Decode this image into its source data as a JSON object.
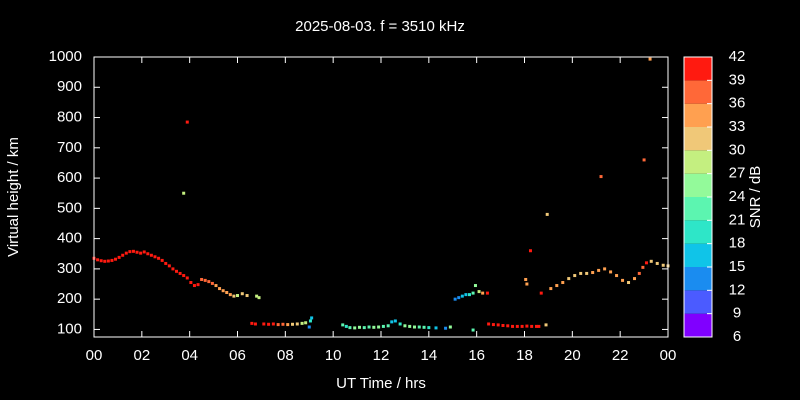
{
  "chart_data": {
    "type": "scatter",
    "title": "2025-08-03. f = 3510 kHz",
    "x_label": "UT Time / hrs",
    "y_label": "Virtual height / km",
    "colorbar_label": "SNR / dB",
    "xlim": [
      0,
      24
    ],
    "ylim": [
      75,
      1000
    ],
    "xticks": [
      {
        "value": 0,
        "label": "00"
      },
      {
        "value": 2,
        "label": "02"
      },
      {
        "value": 4,
        "label": "04"
      },
      {
        "value": 6,
        "label": "06"
      },
      {
        "value": 8,
        "label": "08"
      },
      10,
      12,
      14,
      16,
      18,
      20,
      22,
      {
        "value": 24,
        "label": "00"
      }
    ],
    "yticks": [
      100,
      200,
      300,
      400,
      500,
      600,
      700,
      800,
      900,
      1000
    ],
    "colorbar": {
      "lim": [
        6,
        42
      ],
      "ticks": [
        6,
        9,
        12,
        15,
        18,
        21,
        24,
        27,
        30,
        33,
        36,
        39,
        42
      ],
      "colors": [
        "#8000ff",
        "#4b5bff",
        "#1a8cf0",
        "#10c4e8",
        "#2ee6c8",
        "#5cf5b0",
        "#93fa9a",
        "#c4ef80",
        "#f0c878",
        "#ffa050",
        "#ff6838",
        "#ff1a10"
      ]
    },
    "x": [
      0.0,
      0.15,
      0.3,
      0.45,
      0.6,
      0.75,
      0.9,
      1.05,
      1.2,
      1.35,
      1.5,
      1.65,
      1.8,
      1.95,
      2.1,
      2.25,
      2.4,
      2.55,
      2.7,
      2.85,
      3.0,
      3.15,
      3.3,
      3.45,
      3.6,
      3.75,
      3.9,
      4.05,
      4.2,
      4.35,
      4.5,
      4.65,
      4.8,
      4.95,
      5.1,
      5.25,
      5.4,
      5.55,
      5.7,
      5.85,
      6.0,
      6.2,
      6.4,
      6.8,
      6.9,
      6.6,
      6.75,
      7.1,
      7.3,
      7.5,
      7.7,
      7.9,
      8.1,
      8.3,
      8.5,
      8.7,
      8.85,
      9.0,
      9.05,
      9.1,
      10.4,
      10.55,
      10.7,
      10.9,
      11.1,
      11.3,
      11.5,
      11.7,
      11.9,
      12.1,
      12.3,
      12.45,
      12.6,
      12.8,
      13.0,
      13.2,
      13.4,
      13.6,
      13.8,
      14.0,
      14.3,
      14.7,
      14.9,
      15.1,
      15.25,
      15.4,
      15.55,
      15.7,
      15.85,
      15.95,
      16.1,
      16.25,
      16.45,
      16.5,
      16.7,
      16.9,
      17.1,
      17.3,
      17.5,
      17.7,
      17.9,
      18.1,
      18.3,
      18.5,
      18.6,
      18.9,
      15.85,
      18.05,
      18.1,
      18.25,
      18.7,
      18.95,
      3.75,
      3.9,
      21.2,
      23.0,
      23.25,
      19.1,
      19.35,
      19.6,
      19.85,
      20.1,
      20.35,
      20.6,
      20.85,
      21.1,
      21.35,
      21.6,
      21.85,
      22.1,
      22.35,
      22.6,
      22.8,
      22.95,
      23.1,
      23.3,
      23.55,
      23.8,
      24.0
    ],
    "y": [
      335,
      330,
      327,
      325,
      326,
      328,
      332,
      338,
      345,
      352,
      357,
      358,
      355,
      352,
      356,
      350,
      345,
      340,
      335,
      328,
      318,
      310,
      300,
      292,
      285,
      278,
      270,
      255,
      245,
      248,
      265,
      262,
      258,
      252,
      245,
      235,
      228,
      222,
      215,
      210,
      212,
      218,
      212,
      210,
      205,
      120,
      118,
      118,
      117,
      118,
      116,
      117,
      116,
      117,
      118,
      120,
      122,
      108,
      128,
      138,
      115,
      110,
      106,
      105,
      107,
      106,
      108,
      107,
      108,
      110,
      112,
      125,
      128,
      118,
      112,
      110,
      108,
      108,
      107,
      106,
      105,
      104,
      108,
      200,
      205,
      210,
      215,
      215,
      220,
      245,
      225,
      220,
      220,
      118,
      116,
      115,
      113,
      112,
      110,
      110,
      110,
      111,
      110,
      110,
      110,
      115,
      98,
      265,
      250,
      360,
      220,
      480,
      550,
      785,
      605,
      660,
      993,
      235,
      245,
      255,
      268,
      278,
      285,
      285,
      288,
      295,
      300,
      290,
      278,
      262,
      255,
      268,
      285,
      305,
      320,
      325,
      318,
      312,
      310
    ],
    "snr": [
      39,
      39,
      39,
      39,
      39,
      39,
      39,
      39,
      39,
      39,
      39,
      39,
      39,
      39,
      39,
      39,
      39,
      39,
      39,
      39,
      40,
      40,
      40,
      40,
      40,
      40,
      40,
      39,
      39,
      40,
      37,
      37,
      37,
      36,
      34,
      34,
      33,
      33,
      34,
      31,
      28,
      31,
      30,
      28,
      28,
      39,
      39,
      39,
      40,
      39,
      38,
      36,
      33,
      31,
      30,
      29,
      27,
      13,
      18,
      15,
      21,
      20,
      22,
      25,
      24,
      23,
      22,
      25,
      24,
      22,
      21,
      15,
      16,
      20,
      24,
      26,
      25,
      22,
      21,
      19,
      16,
      14,
      25,
      12,
      13,
      15,
      17,
      20,
      22,
      24,
      29,
      33,
      40,
      40,
      40,
      40,
      40,
      40,
      40,
      40,
      40,
      40,
      40,
      40,
      40,
      30,
      22,
      33,
      33,
      40,
      40,
      30,
      28,
      40,
      37,
      36,
      33,
      33,
      33,
      33,
      32,
      32,
      32,
      31,
      33,
      33,
      34,
      33,
      33,
      33,
      32,
      34,
      36,
      37,
      39,
      31,
      32,
      31,
      32
    ]
  }
}
